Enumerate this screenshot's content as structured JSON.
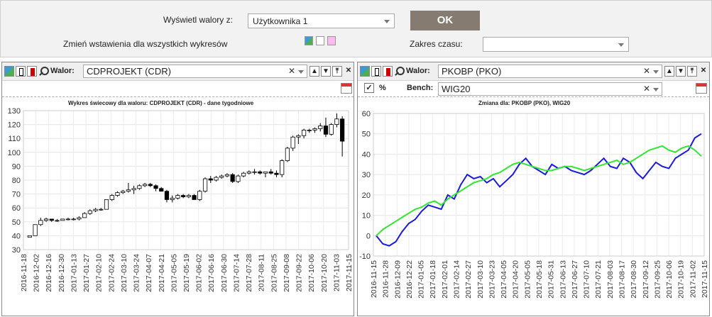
{
  "top": {
    "show_label": "Wyświetl walory z:",
    "show_value": "Użytkownika 1",
    "ok_label": "OK",
    "change_label": "Zmień wstawienia dla wszystkich wykresów",
    "range_label": "Zakres czasu:",
    "range_value": ""
  },
  "left_panel": {
    "walor_label": "Walor:",
    "walor_value": "CDPROJEKT (CDR)",
    "chart_title": "Wykres świecowy dla waloru: CDPROJEKT (CDR) - dane tygodniowe"
  },
  "right_panel": {
    "walor_label": "Walor:",
    "walor_value": "PKOBP (PKO)",
    "percent_label": "%",
    "bench_label": "Bench:",
    "bench_value": "WIG20",
    "chart_title": "Zmiana dla: PKOBP (PKO), WIG20"
  },
  "icons": {
    "close": "✕",
    "up": "▲",
    "down": "▼",
    "top": "⤒",
    "check": "✓"
  },
  "chart_data": [
    {
      "type": "candlestick",
      "title": "Wykres świecowy dla waloru: CDPROJEKT (CDR) - dane tygodniowe",
      "ylim": [
        30,
        130
      ],
      "yticks": [
        30,
        40,
        50,
        60,
        70,
        80,
        90,
        100,
        110,
        120,
        130
      ],
      "xticks": [
        "2016-11-18",
        "2016-12-02",
        "2016-12-16",
        "2016-12-30",
        "2017-01-13",
        "2017-01-27",
        "2017-02-10",
        "2017-02-24",
        "2017-03-10",
        "2017-03-24",
        "2017-04-07",
        "2017-04-21",
        "2017-05-05",
        "2017-05-19",
        "2017-06-02",
        "2017-06-16",
        "2017-06-30",
        "2017-07-14",
        "2017-07-28",
        "2017-08-11",
        "2017-08-25",
        "2017-09-08",
        "2017-09-22",
        "2017-10-06",
        "2017-10-20",
        "2017-11-03",
        "2017-11-15"
      ],
      "grid": true,
      "candles": [
        [
          39,
          40,
          39,
          40
        ],
        [
          40,
          48,
          40,
          48
        ],
        [
          48,
          53,
          47,
          51
        ],
        [
          51,
          53,
          50,
          52
        ],
        [
          52,
          52,
          50,
          51
        ],
        [
          51,
          52,
          50,
          51
        ],
        [
          51,
          52,
          51,
          52
        ],
        [
          52,
          53,
          51,
          52
        ],
        [
          52,
          53,
          51,
          52
        ],
        [
          52,
          54,
          51,
          53
        ],
        [
          53,
          57,
          53,
          56
        ],
        [
          56,
          59,
          55,
          58
        ],
        [
          58,
          60,
          57,
          59
        ],
        [
          59,
          60,
          58,
          59
        ],
        [
          59,
          66,
          59,
          66
        ],
        [
          66,
          70,
          65,
          69
        ],
        [
          69,
          72,
          68,
          71
        ],
        [
          71,
          73,
          70,
          72
        ],
        [
          72,
          78,
          71,
          73
        ],
        [
          73,
          76,
          70,
          74
        ],
        [
          74,
          77,
          73,
          76
        ],
        [
          76,
          78,
          75,
          77
        ],
        [
          77,
          78,
          75,
          76
        ],
        [
          76,
          77,
          72,
          74
        ],
        [
          74,
          75,
          72,
          72
        ],
        [
          72,
          73,
          64,
          66
        ],
        [
          66,
          69,
          64,
          67
        ],
        [
          67,
          70,
          66,
          69
        ],
        [
          69,
          70,
          67,
          68
        ],
        [
          68,
          70,
          67,
          69
        ],
        [
          69,
          70,
          66,
          66
        ],
        [
          66,
          73,
          65,
          72
        ],
        [
          72,
          82,
          71,
          81
        ],
        [
          81,
          83,
          78,
          80
        ],
        [
          80,
          83,
          79,
          82
        ],
        [
          82,
          84,
          81,
          83
        ],
        [
          83,
          85,
          82,
          84
        ],
        [
          84,
          85,
          78,
          79
        ],
        [
          79,
          84,
          78,
          83
        ],
        [
          83,
          86,
          82,
          85
        ],
        [
          85,
          87,
          84,
          86
        ],
        [
          86,
          88,
          84,
          86
        ],
        [
          86,
          87,
          84,
          85
        ],
        [
          85,
          86,
          82,
          86
        ],
        [
          86,
          88,
          84,
          85
        ],
        [
          85,
          87,
          82,
          84
        ],
        [
          84,
          95,
          82,
          94
        ],
        [
          94,
          104,
          93,
          103
        ],
        [
          103,
          112,
          101,
          111
        ],
        [
          111,
          113,
          106,
          112
        ],
        [
          112,
          117,
          110,
          116
        ],
        [
          116,
          117,
          114,
          116
        ],
        [
          116,
          118,
          114,
          117
        ],
        [
          117,
          121,
          115,
          119
        ],
        [
          119,
          125,
          111,
          113
        ],
        [
          113,
          121,
          112,
          120
        ],
        [
          120,
          128,
          118,
          124
        ],
        [
          124,
          126,
          97,
          108
        ]
      ]
    },
    {
      "type": "line",
      "title": "Zmiana dla: PKOBP (PKO), WIG20",
      "ylim": [
        -10,
        60
      ],
      "yticks": [
        -10,
        0,
        10,
        20,
        30,
        40,
        50,
        60
      ],
      "xticks": [
        "2016-11-15",
        "2016-11-28",
        "2016-12-09",
        "2016-12-22",
        "2017-01-05",
        "2017-01-18",
        "2017-02-01",
        "2017-02-14",
        "2017-02-27",
        "2017-03-10",
        "2017-03-23",
        "2017-04-05",
        "2017-04-20",
        "2017-05-05",
        "2017-05-18",
        "2017-05-31",
        "2017-06-13",
        "2017-06-27",
        "2017-07-10",
        "2017-07-21",
        "2017-08-03",
        "2017-08-17",
        "2017-08-30",
        "2017-09-12",
        "2017-09-25",
        "2017-10-06",
        "2017-10-19",
        "2017-11-02",
        "2017-11-15"
      ],
      "grid": true,
      "series": [
        {
          "name": "PKOBP (PKO)",
          "color": "#1a1adb",
          "values": [
            0,
            -4,
            -5,
            -3,
            2,
            6,
            8,
            12,
            15,
            14,
            13,
            20,
            18,
            25,
            30,
            28,
            29,
            26,
            28,
            24,
            27,
            30,
            35,
            38,
            34,
            32,
            30,
            35,
            33,
            34,
            32,
            31,
            30,
            32,
            35,
            38,
            34,
            33,
            38,
            36,
            31,
            28,
            32,
            36,
            34,
            33,
            38,
            40,
            42,
            48,
            50
          ]
        },
        {
          "name": "WIG20",
          "color": "#33e633",
          "values": [
            0,
            3,
            5,
            7,
            9,
            11,
            13,
            14,
            16,
            17,
            15,
            18,
            20,
            22,
            24,
            26,
            27,
            28,
            30,
            31,
            33,
            35,
            36,
            35,
            34,
            33,
            32,
            32,
            33,
            34,
            34,
            33,
            32,
            33,
            34,
            35,
            36,
            37,
            35,
            36,
            38,
            40,
            42,
            43,
            44,
            42,
            41,
            43,
            44,
            42,
            39
          ]
        }
      ]
    }
  ]
}
